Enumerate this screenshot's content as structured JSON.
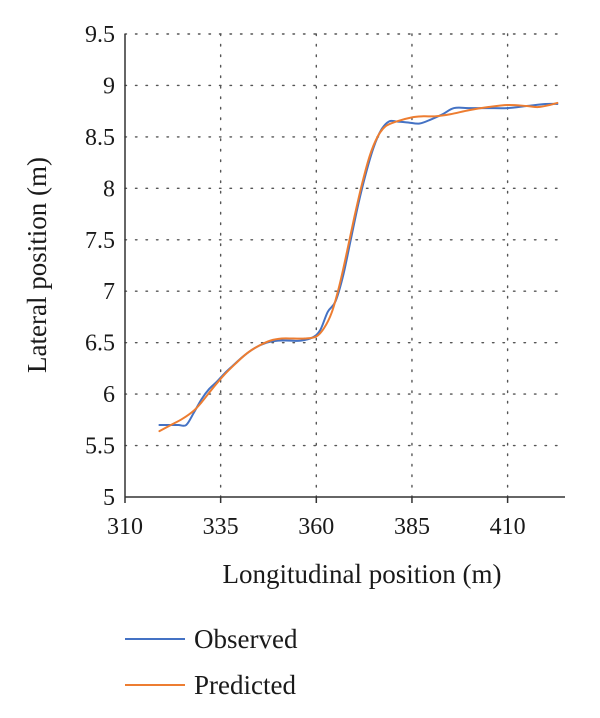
{
  "chart_data": {
    "type": "line",
    "title": "",
    "xlabel": "Longitudinal position (m)",
    "ylabel": "Lateral position (m)",
    "xlim": [
      310,
      425
    ],
    "ylim": [
      5,
      9.5
    ],
    "xticks": [
      310,
      335,
      360,
      385,
      410
    ],
    "yticks": [
      5,
      5.5,
      6,
      6.5,
      7,
      7.5,
      8,
      8.5,
      9,
      9.5
    ],
    "xtick_labels": [
      "310",
      "335",
      "360",
      "385",
      "410"
    ],
    "ytick_labels": [
      "5",
      "5.5",
      "6",
      "6.5",
      "7",
      "7.5",
      "8",
      "8.5",
      "9",
      "9.5"
    ],
    "grid": "dotted",
    "legend_position": "bottom-left",
    "series": [
      {
        "name": "Observed",
        "color": "#4472c4",
        "points": [
          [
            319,
            5.7
          ],
          [
            322,
            5.7
          ],
          [
            324,
            5.7
          ],
          [
            326,
            5.7
          ],
          [
            328,
            5.82
          ],
          [
            330,
            5.95
          ],
          [
            332,
            6.05
          ],
          [
            334,
            6.12
          ],
          [
            336,
            6.2
          ],
          [
            338,
            6.27
          ],
          [
            341,
            6.37
          ],
          [
            344,
            6.45
          ],
          [
            347,
            6.5
          ],
          [
            350,
            6.52
          ],
          [
            353,
            6.52
          ],
          [
            356,
            6.52
          ],
          [
            359,
            6.55
          ],
          [
            361,
            6.62
          ],
          [
            363,
            6.8
          ],
          [
            365,
            6.9
          ],
          [
            367,
            7.15
          ],
          [
            369,
            7.5
          ],
          [
            371,
            7.85
          ],
          [
            373,
            8.15
          ],
          [
            375,
            8.4
          ],
          [
            377,
            8.57
          ],
          [
            379,
            8.65
          ],
          [
            381,
            8.65
          ],
          [
            384,
            8.64
          ],
          [
            387,
            8.63
          ],
          [
            390,
            8.67
          ],
          [
            393,
            8.72
          ],
          [
            396,
            8.78
          ],
          [
            400,
            8.78
          ],
          [
            405,
            8.78
          ],
          [
            410,
            8.78
          ],
          [
            415,
            8.8
          ],
          [
            420,
            8.82
          ],
          [
            423,
            8.82
          ]
        ]
      },
      {
        "name": "Predicted",
        "color": "#ed7d31",
        "points": [
          [
            319,
            5.64
          ],
          [
            322,
            5.7
          ],
          [
            325,
            5.76
          ],
          [
            328,
            5.84
          ],
          [
            330,
            5.92
          ],
          [
            333,
            6.06
          ],
          [
            336,
            6.19
          ],
          [
            339,
            6.3
          ],
          [
            342,
            6.4
          ],
          [
            345,
            6.47
          ],
          [
            348,
            6.52
          ],
          [
            351,
            6.54
          ],
          [
            354,
            6.54
          ],
          [
            357,
            6.54
          ],
          [
            360,
            6.56
          ],
          [
            362,
            6.64
          ],
          [
            364,
            6.79
          ],
          [
            366,
            7.05
          ],
          [
            368,
            7.38
          ],
          [
            370,
            7.73
          ],
          [
            372,
            8.05
          ],
          [
            374,
            8.32
          ],
          [
            376,
            8.5
          ],
          [
            378,
            8.6
          ],
          [
            381,
            8.65
          ],
          [
            385,
            8.69
          ],
          [
            388,
            8.7
          ],
          [
            391,
            8.7
          ],
          [
            395,
            8.72
          ],
          [
            400,
            8.76
          ],
          [
            405,
            8.79
          ],
          [
            410,
            8.81
          ],
          [
            415,
            8.8
          ],
          [
            418,
            8.79
          ],
          [
            421,
            8.81
          ],
          [
            423,
            8.83
          ]
        ]
      }
    ]
  }
}
